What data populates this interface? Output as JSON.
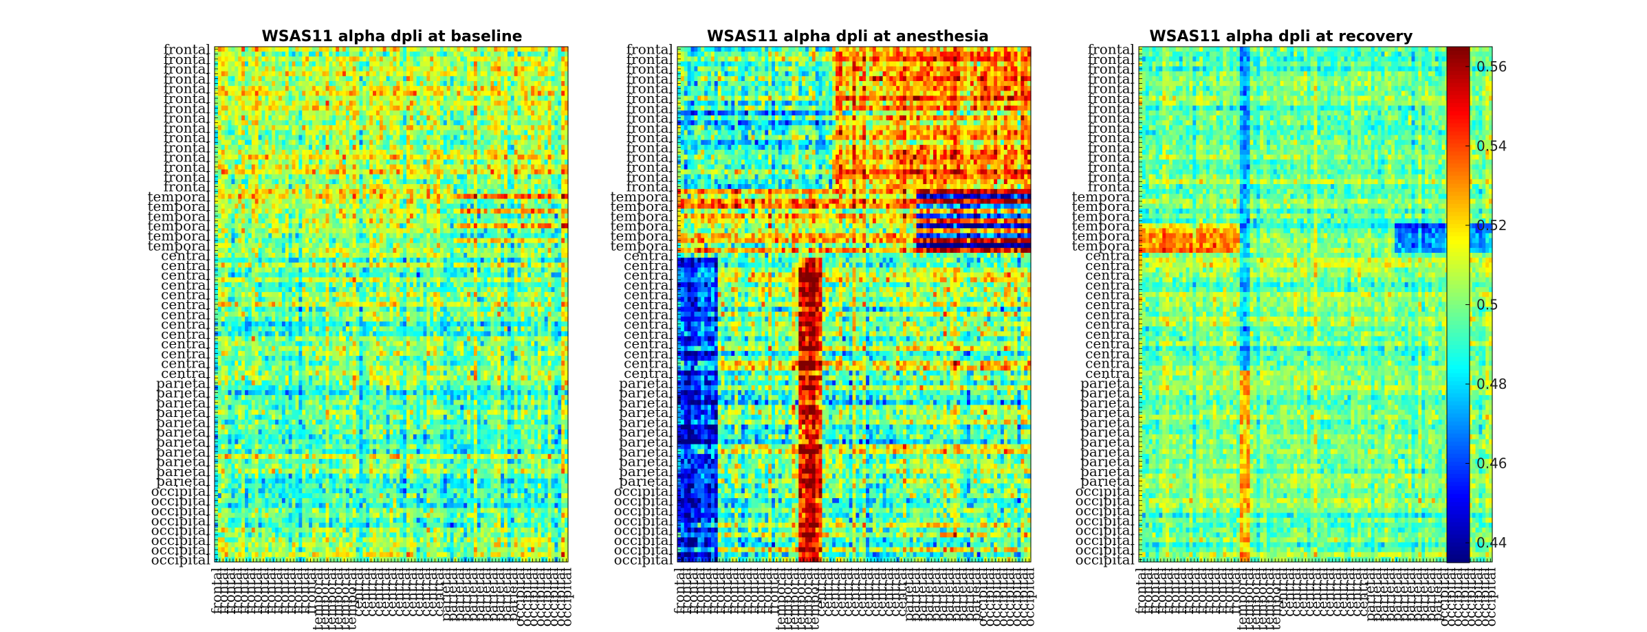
{
  "chart_data": [
    {
      "type": "heatmap",
      "title": "WSAS11 alpha dpli at baseline",
      "pattern": "baseline",
      "grid_size": 105,
      "region_labels": [
        "frontal",
        "temporal",
        "central",
        "parietal",
        "occipital"
      ],
      "region_counts": [
        29,
        13,
        26,
        22,
        15
      ],
      "clim": [
        0.435,
        0.565
      ]
    },
    {
      "type": "heatmap",
      "title": "WSAS11 alpha dpli at anesthesia",
      "pattern": "anesthesia",
      "grid_size": 105,
      "region_labels": [
        "frontal",
        "temporal",
        "central",
        "parietal",
        "occipital"
      ],
      "region_counts": [
        29,
        13,
        26,
        22,
        15
      ],
      "clim": [
        0.435,
        0.565
      ]
    },
    {
      "type": "heatmap",
      "title": "WSAS11 alpha dpli at recovery",
      "pattern": "recovery",
      "grid_size": 105,
      "region_labels": [
        "frontal",
        "temporal",
        "central",
        "parietal",
        "occipital"
      ],
      "region_counts": [
        29,
        13,
        26,
        22,
        15
      ],
      "clim": [
        0.435,
        0.565
      ]
    }
  ],
  "colorbar": {
    "colormap": "jet",
    "range": [
      0.435,
      0.565
    ],
    "ticks": [
      "0.44",
      "0.46",
      "0.48",
      "0.5",
      "0.52",
      "0.54",
      "0.56"
    ]
  }
}
